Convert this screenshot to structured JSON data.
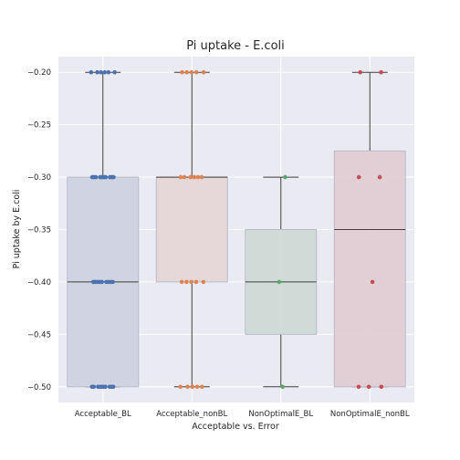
{
  "chart_data": {
    "type": "box",
    "title": "Pi uptake - E.coli",
    "xlabel": "Acceptable vs. Error",
    "ylabel": "Pi uptake by E.coli",
    "ylim": [
      -0.515,
      -0.185
    ],
    "yticks": [
      -0.2,
      -0.25,
      -0.3,
      -0.35,
      -0.4,
      -0.45,
      -0.5
    ],
    "ytick_labels": [
      "−0.20",
      "−0.25",
      "−0.30",
      "−0.35",
      "−0.40",
      "−0.45",
      "−0.50"
    ],
    "grid": true,
    "categories": [
      "Acceptable_BL",
      "Acceptable_nonBL",
      "NonOptimalE_BL",
      "NonOptimalE_nonBL"
    ],
    "boxes": [
      {
        "name": "Acceptable_BL",
        "whisker_low": -0.5,
        "q1": -0.5,
        "median": -0.4,
        "q3": -0.3,
        "whisker_high": -0.2,
        "box_color": "#cdd2e0",
        "point_color": "#4c72b0"
      },
      {
        "name": "Acceptable_nonBL",
        "whisker_low": -0.5,
        "q1": -0.4,
        "median": -0.3,
        "q3": -0.3,
        "whisker_high": -0.2,
        "box_color": "#e6d6d6",
        "point_color": "#dd8452"
      },
      {
        "name": "NonOptimalE_BL",
        "whisker_low": -0.5,
        "q1": -0.45,
        "median": -0.4,
        "q3": -0.35,
        "whisker_high": -0.3,
        "box_color": "#cfdad6",
        "point_color": "#55a868"
      },
      {
        "name": "NonOptimalE_nonBL",
        "whisker_low": -0.5,
        "q1": -0.5,
        "median": -0.35,
        "q3": -0.275,
        "whisker_high": -0.2,
        "box_color": "#e2cdd3",
        "point_color": "#c44e52"
      }
    ],
    "points": [
      {
        "category": "Acceptable_BL",
        "y": -0.2,
        "count": 6
      },
      {
        "category": "Acceptable_BL",
        "y": -0.3,
        "count": 10
      },
      {
        "category": "Acceptable_BL",
        "y": -0.4,
        "count": 9
      },
      {
        "category": "Acceptable_BL",
        "y": -0.5,
        "count": 10
      },
      {
        "category": "Acceptable_nonBL",
        "y": -0.2,
        "count": 5
      },
      {
        "category": "Acceptable_nonBL",
        "y": -0.3,
        "count": 6
      },
      {
        "category": "Acceptable_nonBL",
        "y": -0.4,
        "count": 5
      },
      {
        "category": "Acceptable_nonBL",
        "y": -0.5,
        "count": 5
      },
      {
        "category": "NonOptimalE_BL",
        "y": -0.3,
        "count": 1
      },
      {
        "category": "NonOptimalE_BL",
        "y": -0.4,
        "count": 1
      },
      {
        "category": "NonOptimalE_BL",
        "y": -0.5,
        "count": 1
      },
      {
        "category": "NonOptimalE_nonBL",
        "y": -0.2,
        "count": 2
      },
      {
        "category": "NonOptimalE_nonBL",
        "y": -0.3,
        "count": 2
      },
      {
        "category": "NonOptimalE_nonBL",
        "y": -0.4,
        "count": 1
      },
      {
        "category": "NonOptimalE_nonBL",
        "y": -0.5,
        "count": 3
      }
    ],
    "colors": {
      "plot_background": "#eaeaf2",
      "grid": "#ffffff",
      "box_edge": "#3d3d3d"
    }
  }
}
